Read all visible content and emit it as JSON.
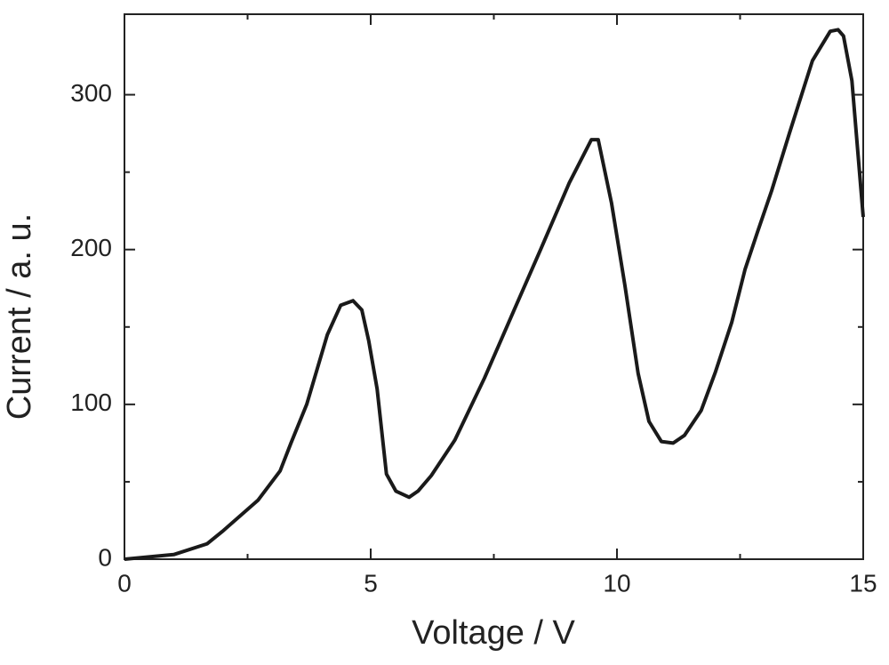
{
  "chart_data": {
    "type": "line",
    "x_label": "Voltage  /  V",
    "y_label": "Current  /  a. u.",
    "x": [
      0,
      1.0,
      1.68,
      1.99,
      2.71,
      3.16,
      3.38,
      3.7,
      4.12,
      4.39,
      4.64,
      4.82,
      4.96,
      5.13,
      5.32,
      5.51,
      5.78,
      5.96,
      6.23,
      6.71,
      7.31,
      7.94,
      8.45,
      9.03,
      9.48,
      9.62,
      9.89,
      10.16,
      10.43,
      10.65,
      10.9,
      11.14,
      11.37,
      11.71,
      12.0,
      12.33,
      12.6,
      12.85,
      13.14,
      13.5,
      13.97,
      14.33,
      14.49,
      14.6,
      14.77,
      15.0
    ],
    "values": [
      0,
      3,
      10,
      18,
      38,
      57,
      75,
      100,
      145,
      164,
      167,
      161,
      141,
      110,
      55,
      44,
      40,
      44,
      54,
      77,
      117,
      163,
      200,
      243,
      271,
      271,
      230,
      177,
      120,
      89,
      76,
      75,
      80,
      96,
      121,
      153,
      187,
      211,
      238,
      275,
      322,
      341,
      342,
      338,
      309,
      221
    ],
    "color": "#1a1a1a",
    "xlim": [
      0,
      15
    ],
    "xticks": [
      0,
      5,
      10,
      15
    ],
    "minor_xticks": [
      2.5,
      7.5,
      12.5
    ],
    "ylim": [
      0,
      352
    ],
    "yticks": [
      0,
      100,
      200,
      300
    ],
    "minor_yticks": [
      50,
      150,
      250
    ],
    "grid": false
  }
}
